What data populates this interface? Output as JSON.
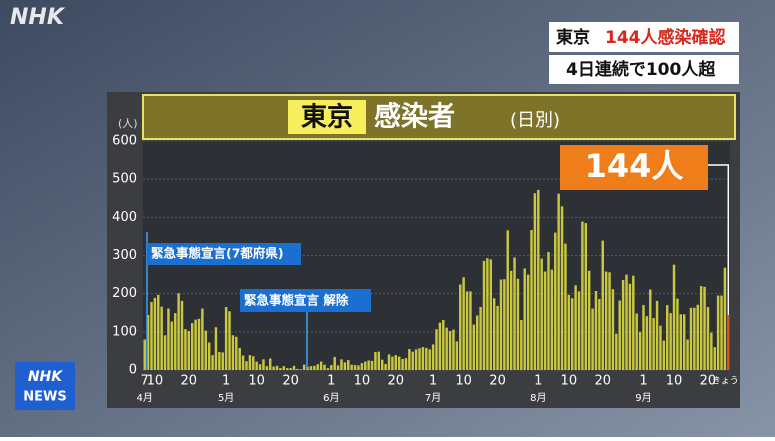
{
  "header": {
    "logo": "NHK",
    "headline_place": "東京",
    "headline_main": "144人感染確認",
    "headline_sub": "4日連続で100人超"
  },
  "chart_data": {
    "type": "bar",
    "title": "東京",
    "title_main": "感染者",
    "subtitle": "(日別)",
    "y_unit": "(人)",
    "categories": [
      "7",
      null,
      null,
      "10",
      null,
      null,
      null,
      null,
      null,
      null,
      null,
      null,
      null,
      "20",
      null,
      null,
      null,
      null,
      null,
      null,
      null,
      null,
      null,
      null,
      "1",
      null,
      null,
      null,
      null,
      null,
      null,
      null,
      null,
      "10",
      null,
      null,
      null,
      null,
      null,
      null,
      null,
      null,
      null,
      "20",
      null,
      null,
      null,
      null,
      null,
      null,
      null,
      null,
      null,
      null,
      null,
      "1",
      null,
      null,
      null,
      null,
      null,
      null,
      null,
      null,
      "10",
      null,
      null,
      null,
      null,
      null,
      null,
      null,
      null,
      null,
      "20",
      null,
      null,
      null,
      null,
      null,
      null,
      null,
      null,
      null,
      null,
      "1",
      null,
      null,
      null,
      null,
      null,
      null,
      null,
      null,
      "10",
      null,
      null,
      null,
      null,
      null,
      null,
      null,
      null,
      null,
      "20",
      null,
      null,
      null,
      null,
      null,
      null,
      null,
      null,
      null,
      null,
      null,
      "1",
      null,
      null,
      null,
      null,
      null,
      null,
      null,
      null,
      "10",
      null,
      null,
      null,
      null,
      null,
      null,
      null,
      null,
      null,
      "20",
      null,
      null,
      null,
      null,
      null,
      null,
      null,
      null,
      null,
      null,
      null,
      "1",
      null,
      null,
      null,
      null,
      null,
      null,
      null,
      null,
      "10",
      null,
      null,
      null,
      null,
      null,
      null,
      null,
      null,
      null,
      "20",
      null,
      null,
      null,
      null,
      null,
      "きょう"
    ],
    "month_labels": [
      "4月",
      null,
      null,
      null,
      null,
      null,
      null,
      null,
      null,
      null,
      null,
      null,
      null,
      null,
      null,
      null,
      null,
      null,
      null,
      null,
      null,
      null,
      null,
      null,
      "5月",
      null,
      null,
      null,
      null,
      null,
      null,
      null,
      null,
      null,
      null,
      null,
      null,
      null,
      null,
      null,
      null,
      null,
      null,
      null,
      null,
      null,
      null,
      null,
      null,
      null,
      null,
      null,
      null,
      null,
      null,
      "6月",
      null,
      null,
      null,
      null,
      null,
      null,
      null,
      null,
      null,
      null,
      null,
      null,
      null,
      null,
      null,
      null,
      null,
      null,
      null,
      null,
      null,
      null,
      null,
      null,
      null,
      null,
      null,
      null,
      null,
      "7月",
      null,
      null,
      null,
      null,
      null,
      null,
      null,
      null,
      null,
      null,
      null,
      null,
      null,
      null,
      null,
      null,
      null,
      null,
      null,
      null,
      null,
      null,
      null,
      null,
      null,
      null,
      null,
      null,
      null,
      null,
      "8月",
      null,
      null,
      null,
      null,
      null,
      null,
      null,
      null,
      null,
      null,
      null,
      null,
      null,
      null,
      null,
      null,
      null,
      null,
      null,
      null,
      null,
      null,
      null,
      null,
      null,
      null,
      null,
      null,
      null,
      null,
      "9月",
      null,
      null,
      null,
      null,
      null,
      null,
      null,
      null,
      null,
      null,
      null,
      null,
      null,
      null,
      null,
      null,
      null,
      null,
      null,
      null,
      null,
      null,
      null,
      null,
      null
    ],
    "values": [
      80,
      144,
      178,
      189,
      197,
      166,
      91,
      161,
      127,
      149,
      201,
      181,
      107,
      102,
      123,
      132,
      134,
      161,
      103,
      72,
      39,
      112,
      47,
      46,
      165,
      154,
      91,
      87,
      58,
      38,
      23,
      39,
      36,
      22,
      15,
      28,
      10,
      30,
      9,
      11,
      5,
      10,
      5,
      5,
      11,
      3,
      2,
      14,
      8,
      10,
      11,
      15,
      22,
      14,
      5,
      13,
      34,
      12,
      28,
      20,
      26,
      14,
      13,
      12,
      18,
      22,
      25,
      24,
      47,
      48,
      27,
      16,
      41,
      35,
      39,
      35,
      29,
      31,
      55,
      48,
      54,
      57,
      60,
      58,
      54,
      67,
      107,
      124,
      131,
      111,
      102,
      106,
      75,
      224,
      243,
      206,
      206,
      119,
      143,
      165,
      286,
      293,
      290,
      188,
      168,
      237,
      238,
      366,
      260,
      295,
      239,
      131,
      266,
      250,
      367,
      463,
      472,
      292,
      258,
      309,
      263,
      360,
      462,
      429,
      331,
      197,
      188,
      222,
      206,
      389,
      385,
      260,
      161,
      207,
      186,
      339,
      258,
      256,
      212,
      95,
      182,
      236,
      250,
      226,
      247,
      148,
      100,
      170,
      141,
      211,
      136,
      181,
      116,
      77,
      170,
      149,
      276,
      187,
      146,
      146,
      80,
      163,
      163,
      171,
      220,
      218,
      165,
      98,
      60,
      195,
      195,
      268,
      144
    ],
    "color": "#c9c83e",
    "highlight_color": "#e8541c",
    "ylim": [
      0,
      600
    ],
    "yticks": [
      0,
      100,
      200,
      300,
      400,
      500,
      600
    ],
    "grid": true,
    "annotations": [
      "緊急事態宣言(7都府県)",
      "緊急事態宣言 解除"
    ],
    "callout": "144人"
  },
  "footer": {
    "logo_top": "NHK",
    "logo_bottom": "NEWS"
  }
}
